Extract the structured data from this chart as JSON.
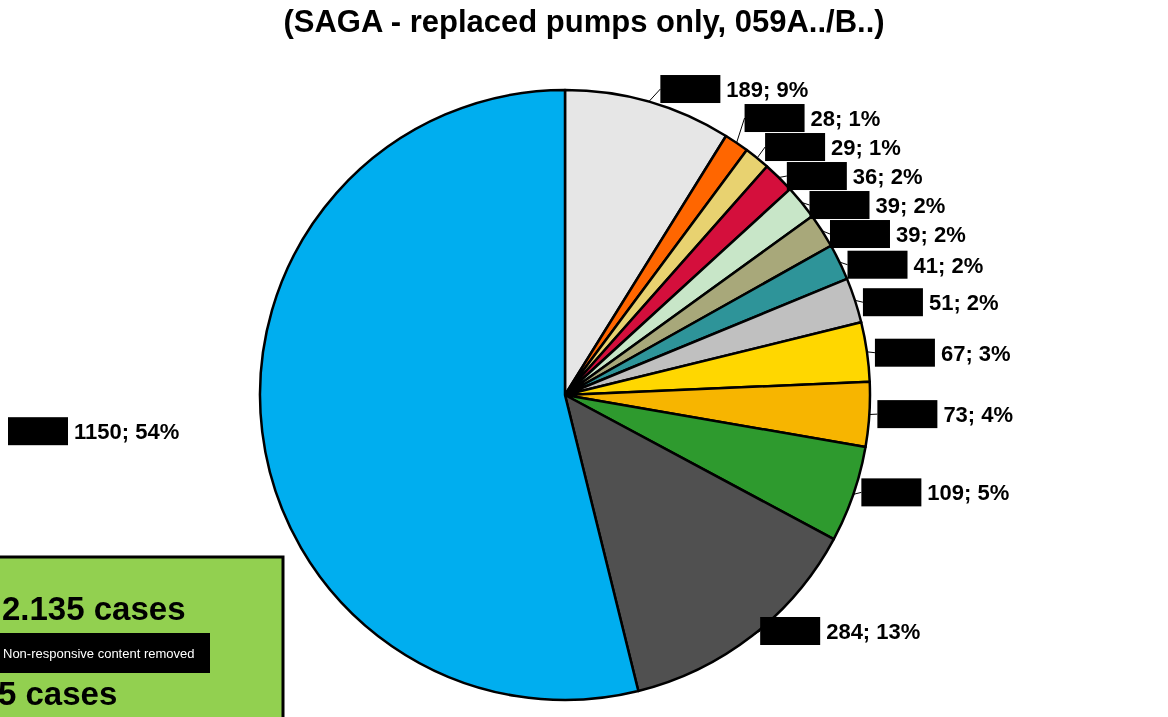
{
  "chart_data": {
    "type": "pie",
    "title": "(SAGA - replaced pumps only, 059A../B..)",
    "categories": [
      null,
      null,
      null,
      null,
      null,
      null,
      null,
      null,
      null,
      null,
      null,
      null,
      null
    ],
    "values": [
      189,
      28,
      29,
      36,
      39,
      39,
      41,
      51,
      67,
      73,
      109,
      284,
      1150
    ],
    "colors": [
      "#e6e6e6",
      "#ff6600",
      "#e8d270",
      "#d40f3c",
      "#c8e6c8",
      "#a8a87a",
      "#2e9499",
      "#c0c0c0",
      "#ffd700",
      "#f7b500",
      "#2e9a2e",
      "#505050",
      "#00aeef"
    ],
    "value_labels": [
      "189; 9%",
      "28; 1%",
      "29; 1%",
      "36; 2%",
      "39; 2%",
      "39; 2%",
      "41; 2%",
      "51; 2%",
      "67; 3%",
      "73; 4%",
      "109; 5%",
      "284; 13%",
      "1150; 54%"
    ],
    "annotations": [
      "2.135 cases",
      "5 cases",
      "Non-responsive content removed"
    ]
  }
}
